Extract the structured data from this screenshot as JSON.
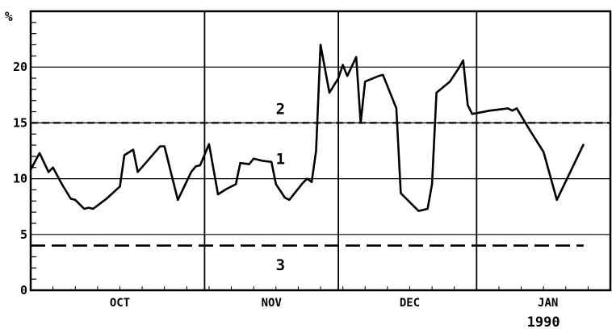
{
  "chart_data": {
    "type": "line",
    "ylabel": "%",
    "ylim": [
      0,
      25
    ],
    "y_ticks": [
      0,
      5,
      10,
      15,
      20
    ],
    "y_tick_labels": [
      "0",
      "5",
      "10",
      "15",
      "20"
    ],
    "x_range": [
      "1989-09-22",
      "1990-01-30"
    ],
    "month_separators": [
      "1989-10-31",
      "1989-11-30",
      "1989-12-31"
    ],
    "month_labels": [
      {
        "label": "OCT",
        "date": "1989-10-12"
      },
      {
        "label": "NOV",
        "date": "1989-11-15"
      },
      {
        "label": "DEC",
        "date": "1989-12-16"
      },
      {
        "label": "JAN",
        "date": "1990-01-16"
      }
    ],
    "year_label": {
      "label": "1990",
      "date": "1990-01-15"
    },
    "series": [
      {
        "style": "solid",
        "points": [
          [
            "1989-09-22",
            10.8
          ],
          [
            "1989-09-24",
            12.3
          ],
          [
            "1989-09-26",
            10.6
          ],
          [
            "1989-09-27",
            11.0
          ],
          [
            "1989-09-29",
            9.5
          ],
          [
            "1989-10-01",
            8.2
          ],
          [
            "1989-10-02",
            8.1
          ],
          [
            "1989-10-04",
            7.3
          ],
          [
            "1989-10-05",
            7.4
          ],
          [
            "1989-10-06",
            7.3
          ],
          [
            "1989-10-09",
            8.2
          ],
          [
            "1989-10-12",
            9.3
          ],
          [
            "1989-10-13",
            12.1
          ],
          [
            "1989-10-15",
            12.6
          ],
          [
            "1989-10-16",
            10.6
          ],
          [
            "1989-10-18",
            11.5
          ],
          [
            "1989-10-21",
            12.9
          ],
          [
            "1989-10-22",
            12.9
          ],
          [
            "1989-10-24",
            9.7
          ],
          [
            "1989-10-25",
            8.1
          ],
          [
            "1989-10-28",
            10.6
          ],
          [
            "1989-10-29",
            11.1
          ],
          [
            "1989-10-30",
            11.2
          ],
          [
            "1989-11-01",
            13.1
          ],
          [
            "1989-11-03",
            8.6
          ],
          [
            "1989-11-05",
            9.1
          ],
          [
            "1989-11-07",
            9.5
          ],
          [
            "1989-11-08",
            11.4
          ],
          [
            "1989-11-10",
            11.3
          ],
          [
            "1989-11-11",
            11.8
          ],
          [
            "1989-11-13",
            11.6
          ],
          [
            "1989-11-15",
            11.5
          ],
          [
            "1989-11-16",
            9.5
          ],
          [
            "1989-11-18",
            8.3
          ],
          [
            "1989-11-19",
            8.1
          ],
          [
            "1989-11-22",
            9.6
          ],
          [
            "1989-11-23",
            10.0
          ],
          [
            "1989-11-24",
            9.7
          ],
          [
            "1989-11-25",
            12.5
          ],
          [
            "1989-11-26",
            22.0
          ],
          [
            "1989-11-28",
            17.7
          ],
          [
            "1989-11-30",
            19.0
          ],
          [
            "1989-12-01",
            20.2
          ],
          [
            "1989-12-02",
            19.2
          ],
          [
            "1989-12-04",
            20.9
          ],
          [
            "1989-12-05",
            15.0
          ],
          [
            "1989-12-06",
            18.7
          ],
          [
            "1989-12-09",
            19.2
          ],
          [
            "1989-12-10",
            19.3
          ],
          [
            "1989-12-13",
            16.3
          ],
          [
            "1989-12-14",
            8.7
          ],
          [
            "1989-12-18",
            7.1
          ],
          [
            "1989-12-20",
            7.3
          ],
          [
            "1989-12-21",
            9.5
          ],
          [
            "1989-12-22",
            17.7
          ],
          [
            "1989-12-25",
            18.7
          ],
          [
            "1989-12-27",
            19.9
          ],
          [
            "1989-12-28",
            20.6
          ],
          [
            "1989-12-29",
            16.6
          ],
          [
            "1989-12-30",
            15.8
          ],
          [
            "1990-01-03",
            16.1
          ],
          [
            "1990-01-07",
            16.3
          ],
          [
            "1990-01-08",
            16.1
          ],
          [
            "1990-01-09",
            16.3
          ],
          [
            "1990-01-12",
            14.3
          ],
          [
            "1990-01-15",
            12.4
          ],
          [
            "1990-01-18",
            8.1
          ],
          [
            "1990-01-24",
            13.1
          ]
        ]
      },
      {
        "style": "dashed",
        "points": [
          [
            "1989-09-22",
            15.0
          ],
          [
            "1990-01-30",
            15.0
          ]
        ]
      },
      {
        "style": "dashed-long",
        "points": [
          [
            "1989-09-22",
            4.0
          ],
          [
            "1990-01-24",
            4.0
          ]
        ]
      }
    ],
    "annotations": [
      {
        "text": "1",
        "date": "1989-11-17",
        "y": 11.8
      },
      {
        "text": "2",
        "date": "1989-11-17",
        "y": 16.3
      },
      {
        "text": "3",
        "date": "1989-11-17",
        "y": 2.3
      }
    ],
    "grid": true,
    "legend": "none"
  }
}
